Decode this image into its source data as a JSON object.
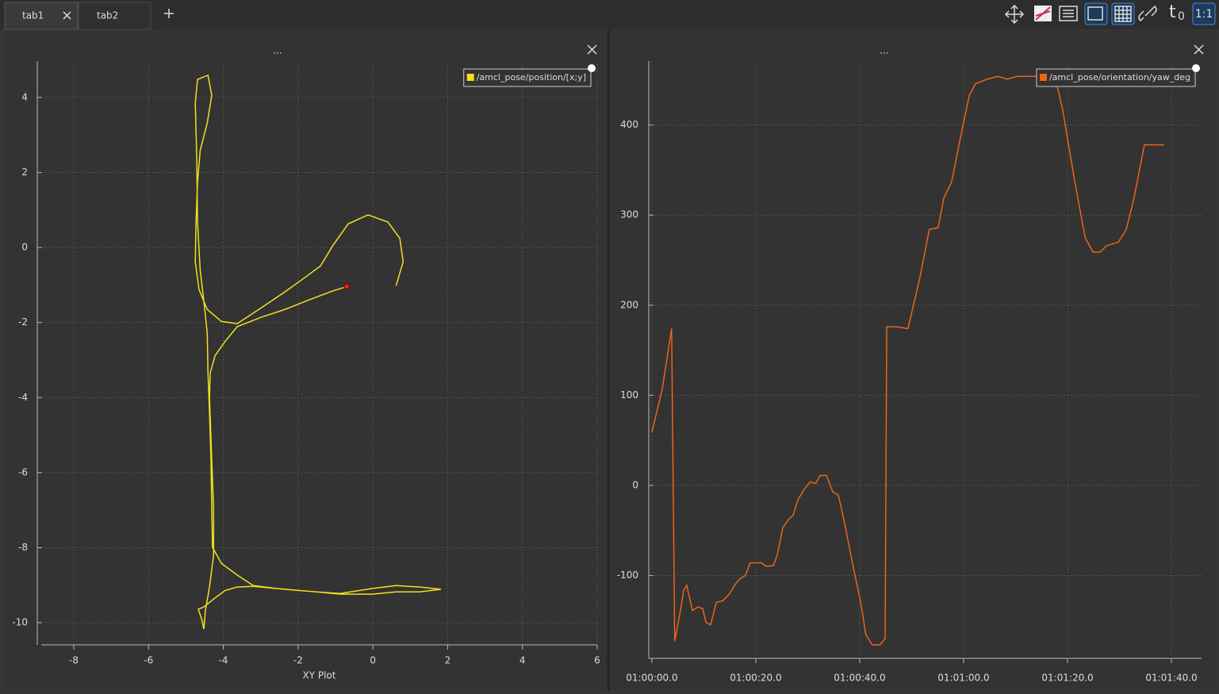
{
  "tabs": [
    "tab1",
    "tab2"
  ],
  "toolbar": {
    "time_offset": "t",
    "time_offset_sub": "0",
    "ratio": "1:1"
  },
  "chart_data": [
    {
      "type": "xy",
      "title": "...",
      "xlabel": "XY Plot",
      "xlim": [
        -8.87,
        6
      ],
      "ylim": [
        -10.59,
        4.97
      ],
      "xticks": [
        -8,
        -6,
        -4,
        -2,
        0,
        2,
        4,
        6
      ],
      "yticks": [
        -10,
        -8,
        -6,
        -4,
        -2,
        0,
        2,
        4
      ],
      "grid": true,
      "legend": "top-right",
      "series": [
        {
          "name": "/amcl_pose/position/[x;y]",
          "color": "#f2e01e",
          "x": [
            0.62,
            0.81,
            0.72,
            0.4,
            -0.13,
            -0.66,
            -1.08,
            -1.4,
            -1.82,
            -2.35,
            -2.99,
            -3.63,
            -4.05,
            -4.43,
            -4.65,
            -4.75,
            -4.73,
            -4.69,
            -4.62,
            -4.43,
            -4.31,
            -4.41,
            -4.69,
            -4.75,
            -4.71,
            -4.69,
            -4.62,
            -4.52,
            -4.43,
            -4.41,
            -4.37,
            -4.33,
            -4.31,
            -4.29,
            -4.05,
            -3.63,
            -3.2,
            -2.57,
            -1.51,
            -0.87,
            -0.02,
            0.62,
            1.25,
            1.82,
            1.25,
            0.62,
            -0.02,
            -0.87,
            -1.51,
            -2.35,
            -3.2,
            -3.63,
            -3.95,
            -4.26,
            -4.52,
            -4.67,
            -4.58,
            -4.52,
            -4.48,
            -4.37,
            -4.26,
            -4.26,
            -4.31,
            -4.37,
            -4.35,
            -4.22,
            -3.95,
            -3.63,
            -2.99,
            -2.35,
            -1.72,
            -1.08,
            -0.7
          ],
          "values": [
            -1.02,
            -0.38,
            0.25,
            0.68,
            0.87,
            0.63,
            0.04,
            -0.49,
            -0.8,
            -1.18,
            -1.61,
            -2.03,
            -1.97,
            -1.65,
            -1.12,
            -0.38,
            0.68,
            1.73,
            2.58,
            3.32,
            4.06,
            4.59,
            4.48,
            3.85,
            2.37,
            0.68,
            -0.59,
            -1.44,
            -2.28,
            -3.34,
            -4.4,
            -5.67,
            -6.94,
            -7.99,
            -8.42,
            -8.73,
            -9.01,
            -9.09,
            -9.18,
            -9.22,
            -9.09,
            -9.01,
            -9.05,
            -9.11,
            -9.18,
            -9.18,
            -9.24,
            -9.24,
            -9.18,
            -9.11,
            -9.03,
            -9.05,
            -9.14,
            -9.37,
            -9.58,
            -9.64,
            -9.9,
            -10.17,
            -9.68,
            -9.05,
            -8.2,
            -6.94,
            -5.67,
            -3.98,
            -3.34,
            -2.88,
            -2.5,
            -2.11,
            -1.86,
            -1.65,
            -1.4,
            -1.16,
            -1.04
          ]
        }
      ]
    },
    {
      "type": "line",
      "title": "...",
      "xlim": [
        -0.6,
        105.8
      ],
      "ylim": [
        -192,
        471
      ],
      "xticks": [
        {
          "value": 0,
          "label": "01:00:00.0"
        },
        {
          "value": 20,
          "label": "01:00:20.0"
        },
        {
          "value": 40,
          "label": "01:00:40.0"
        },
        {
          "value": 60,
          "label": "01:01:00.0"
        },
        {
          "value": 80,
          "label": "01:01:20.0"
        },
        {
          "value": 100,
          "label": "01:01:40.0"
        }
      ],
      "yticks": [
        -100,
        0,
        100,
        200,
        300,
        400
      ],
      "grid": true,
      "legend": "top-right",
      "x": [
        0,
        2.0,
        3.8,
        4.4,
        5.5,
        6.1,
        6.7,
        7.8,
        8.9,
        9.8,
        10.4,
        11.3,
        12.4,
        13.7,
        15.0,
        15.9,
        16.9,
        18.0,
        18.9,
        21.1,
        22.0,
        23.4,
        24.1,
        25.2,
        26.3,
        27.2,
        28.1,
        29.5,
        30.5,
        31.5,
        32.4,
        33.6,
        34.8,
        35.9,
        37.1,
        38.6,
        40.2,
        41.2,
        42.4,
        43.9,
        44.9,
        45.2,
        47.0,
        49.3,
        51.6,
        53.4,
        55.1,
        56.2,
        57.7,
        59.5,
        61.1,
        62.3,
        64.6,
        66.6,
        68.4,
        70.4,
        73.0,
        77.6,
        79.1,
        81.4,
        83.4,
        84.9,
        86.3,
        87.5,
        89.8,
        91.3,
        92.8,
        94.8,
        98.6
      ],
      "series": [
        {
          "name": "/amcl_pose/orientation/yaw_deg",
          "color": "#ec6418",
          "values": [
            59,
            107,
            174,
            -173,
            -139,
            -117,
            -111,
            -139,
            -135,
            -137,
            -152,
            -155,
            -130,
            -128,
            -120,
            -111,
            -104,
            -100,
            -86,
            -86,
            -90,
            -89,
            -78,
            -47,
            -38,
            -33,
            -16,
            -3,
            4,
            2,
            11,
            11,
            -7,
            -11,
            -42,
            -86,
            -130,
            -166,
            -177,
            -177,
            -170,
            176,
            176,
            174,
            231,
            284,
            286,
            319,
            337,
            389,
            433,
            446,
            451,
            454,
            451,
            454,
            454,
            454,
            416,
            337,
            275,
            259,
            259,
            266,
            270,
            284,
            319,
            378,
            378
          ]
        }
      ]
    }
  ]
}
